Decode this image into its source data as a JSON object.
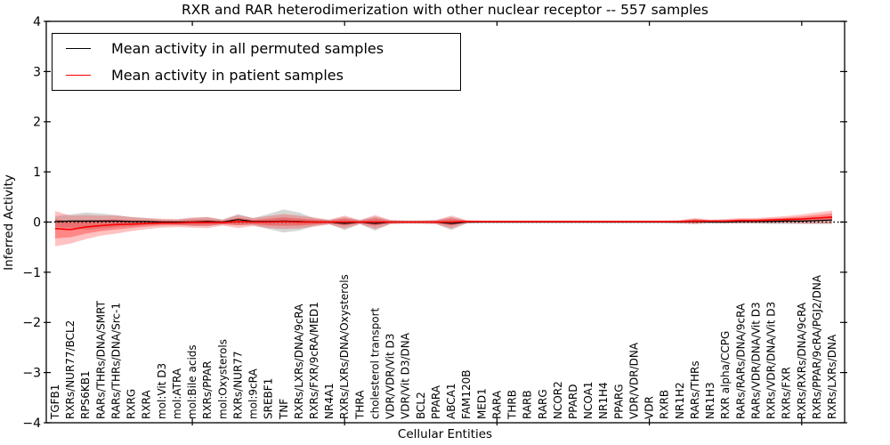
{
  "title": "RXR and RAR heterodimerization with other nuclear receptor -- 557 samples",
  "axes": {
    "ylabel": "Inferred Activity",
    "xlabel": "Cellular Entities"
  },
  "legend": {
    "items": [
      {
        "label": "Mean activity in all permuted samples",
        "color": "#000000"
      },
      {
        "label": "Mean activity in patient samples",
        "color": "#ff0000"
      }
    ]
  },
  "chart_data": {
    "type": "line",
    "title": "RXR and RAR heterodimerization with other nuclear receptor -- 557 samples",
    "xlabel": "Cellular Entities",
    "ylabel": "Inferred Activity",
    "ylim": [
      -4,
      4
    ],
    "yticks": [
      4,
      3,
      2,
      1,
      0,
      -1,
      -2,
      -3,
      -4
    ],
    "ytick_labels": [
      "4",
      "3",
      "2",
      "1",
      "0",
      "−1",
      "−2",
      "−3",
      "−4"
    ],
    "xtick_indices": [
      9,
      19,
      29,
      39,
      49
    ],
    "grid": false,
    "zero_line": true,
    "legend_position": "upper left",
    "categories": [
      "TGFB1",
      "RXRs/NUR77/BCL2",
      "RPS6KB1",
      "RARs/THRs/DNA/SMRT",
      "RARs/THRs/DNA/Src-1",
      "RXRG",
      "RXRA",
      "mol:Vit D3",
      "mol:ATRA",
      "mol:Bile acids",
      "RXRs/PPAR",
      "mol:Oxysterols",
      "RXRs/NUR77",
      "mol:9cRA",
      "SREBF1",
      "TNF",
      "RXRs/LXRs/DNA/9cRA",
      "RXRs/FXR/9cRA/MED1",
      "NR4A1",
      "RXRs/LXRs/DNA/Oxysterols",
      "THRA",
      "cholesterol transport",
      "VDR/VDR/Vit D3",
      "VDR/Vit D3/DNA",
      "BCL2",
      "PPARA",
      "ABCA1",
      "FAM120B",
      "MED1",
      "RARA",
      "THRB",
      "RARB",
      "RARG",
      "NCOR2",
      "PPARD",
      "NCOA1",
      "NR1H4",
      "PPARG",
      "VDR/VDR/DNA",
      "VDR",
      "RXRB",
      "NR1H2",
      "RARs/THRs",
      "NR1H3",
      "RXR alpha/CCPG",
      "RARs/RARs/DNA/9cRA",
      "RARs/VDR/DNA/Vit D3",
      "RXRs/VDR/DNA/Vit D3",
      "RXRs/FXR",
      "RXRs/RXRs/DNA/9cRA",
      "RXRs/PPAR/9cRA/PGJ2/DNA",
      "RXRs/LXRs/DNA"
    ],
    "series": [
      {
        "name": "Mean activity in all permuted samples",
        "color": "#000000",
        "band_color": "rgba(0,0,0,0.16)",
        "mean": [
          0.01,
          0.02,
          0.02,
          0.02,
          0.02,
          0.01,
          0.01,
          0,
          0,
          0,
          0.01,
          0,
          0.05,
          0.01,
          0.01,
          0.02,
          0.01,
          0,
          0,
          -0.03,
          0,
          -0.03,
          0,
          0,
          0,
          0,
          -0.03,
          0,
          0,
          0,
          0,
          0,
          0,
          0,
          0,
          0,
          0,
          0,
          0,
          0,
          0,
          0,
          0.01,
          0,
          0,
          0.01,
          0.01,
          0.01,
          0.02,
          0.02,
          0.03,
          0.04
        ],
        "std": [
          0.11,
          0.13,
          0.17,
          0.15,
          0.12,
          0.09,
          0.07,
          0.05,
          0.05,
          0.08,
          0.09,
          0.05,
          0.11,
          0.07,
          0.15,
          0.23,
          0.18,
          0.08,
          0.04,
          0.13,
          0.04,
          0.14,
          0.04,
          0.03,
          0.03,
          0.04,
          0.13,
          0.03,
          0.02,
          0.02,
          0.02,
          0.02,
          0.02,
          0.02,
          0.02,
          0.02,
          0.02,
          0.02,
          0.02,
          0.02,
          0.02,
          0.03,
          0.05,
          0.03,
          0.03,
          0.04,
          0.04,
          0.05,
          0.06,
          0.06,
          0.07,
          0.08
        ]
      },
      {
        "name": "Mean activity in patient samples",
        "color": "#ff0000",
        "band_color": "rgba(255,0,0,0.24)",
        "inner_band_color": "rgba(255,0,0,0.30)",
        "mean": [
          -0.13,
          -0.15,
          -0.1,
          -0.07,
          -0.05,
          -0.04,
          -0.03,
          -0.02,
          -0.02,
          -0.01,
          -0.01,
          -0.01,
          0.01,
          0,
          0,
          0.01,
          0,
          0,
          0,
          0,
          0,
          0,
          0,
          0,
          0,
          0,
          0,
          0.01,
          0.01,
          0.01,
          0.01,
          0.01,
          0.01,
          0.01,
          0.01,
          0.01,
          0.01,
          0.01,
          0.01,
          0.01,
          0.01,
          0.01,
          0.02,
          0.02,
          0.02,
          0.03,
          0.03,
          0.04,
          0.05,
          0.06,
          0.08,
          0.1
        ],
        "std": [
          0.35,
          0.28,
          0.24,
          0.2,
          0.18,
          0.14,
          0.11,
          0.09,
          0.08,
          0.1,
          0.11,
          0.06,
          0.13,
          0.08,
          0.12,
          0.15,
          0.13,
          0.09,
          0.05,
          0.13,
          0.04,
          0.14,
          0.04,
          0.03,
          0.03,
          0.04,
          0.13,
          0.03,
          0.02,
          0.02,
          0.02,
          0.02,
          0.02,
          0.02,
          0.02,
          0.02,
          0.02,
          0.02,
          0.02,
          0.02,
          0.02,
          0.03,
          0.06,
          0.03,
          0.04,
          0.05,
          0.05,
          0.06,
          0.07,
          0.09,
          0.11,
          0.13
        ]
      }
    ]
  }
}
